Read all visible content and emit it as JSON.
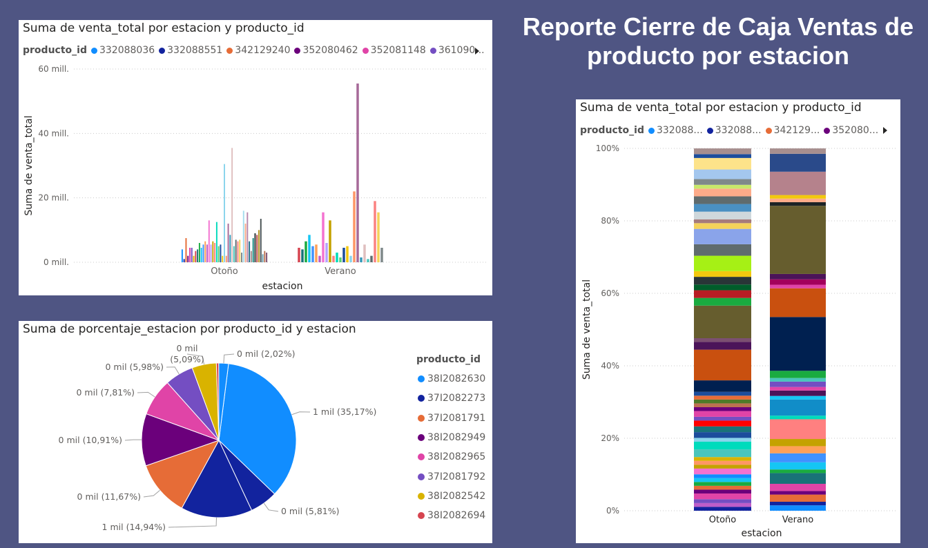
{
  "report_title": "Reporte Cierre de Caja Ventas de producto por estacion",
  "colors": {
    "background": "#4f5583",
    "palette": [
      "#118dff",
      "#12239e",
      "#e66c37",
      "#6b007b",
      "#e044a7",
      "#744ec2",
      "#d9b300",
      "#d64550",
      "#197278",
      "#1aab40",
      "#15c6f4",
      "#4092ff",
      "#ffa058",
      "#be5dc9",
      "#f472d0",
      "#b5a1ff",
      "#c4a200",
      "#ff8080",
      "#00dbbc",
      "#5bd078",
      "#1c4d9c",
      "#f2c80f",
      "#8ad4eb",
      "#fe9666",
      "#a66999",
      "#3599b8",
      "#dfbfbf",
      "#4ac5bb",
      "#5f6b6d",
      "#fb8281",
      "#f4d25a",
      "#7f898a",
      "#a4ddee",
      "#fdab89",
      "#b687ac",
      "#28738a",
      "#a78f8f",
      "#168980",
      "#293537",
      "#bb4a4a",
      "#b59525",
      "#475052",
      "#6a9fb0",
      "#bd7150",
      "#7b4f71",
      "#1b4d5c",
      "#706060",
      "#0f5c55",
      "#1c2325",
      "#7d3231",
      "#7d6b2e"
    ]
  },
  "chart1": {
    "title": "Suma de venta_total por estacion y producto_id",
    "legend_title": "producto_id",
    "legend": [
      {
        "label": "332088036",
        "color": "#118dff"
      },
      {
        "label": "332088551",
        "color": "#12239e"
      },
      {
        "label": "342129240",
        "color": "#e66c37"
      },
      {
        "label": "352080462",
        "color": "#6b007b"
      },
      {
        "label": "352081148",
        "color": "#e044a7"
      },
      {
        "label": "361090...",
        "color": "#744ec2"
      }
    ]
  },
  "chart2": {
    "title": "Suma de porcentaje_estacion por producto_id y estacion",
    "legend_title": "producto_id",
    "legend": [
      {
        "label": "38I2082630",
        "color": "#118dff"
      },
      {
        "label": "37I2082273",
        "color": "#12239e"
      },
      {
        "label": "37I2081791",
        "color": "#e66c37"
      },
      {
        "label": "38I2082949",
        "color": "#6b007b"
      },
      {
        "label": "38I2082965",
        "color": "#e044a7"
      },
      {
        "label": "37I2081792",
        "color": "#744ec2"
      },
      {
        "label": "38I2082542",
        "color": "#d9b300"
      },
      {
        "label": "38I2082694",
        "color": "#d64550"
      }
    ]
  },
  "chart3": {
    "title": "Suma de venta_total por estacion y producto_id",
    "legend_title": "producto_id",
    "legend": [
      {
        "label": "332088...",
        "color": "#118dff"
      },
      {
        "label": "332088...",
        "color": "#12239e"
      },
      {
        "label": "342129...",
        "color": "#e66c37"
      },
      {
        "label": "352080...",
        "color": "#6b007b"
      }
    ]
  },
  "chart_data": [
    {
      "type": "bar",
      "title": "Suma de venta_total por estacion y producto_id",
      "xlabel": "estacion",
      "ylabel": "Suma de venta_total",
      "ylim": [
        0,
        60
      ],
      "yticks": [
        {
          "value": 0,
          "label": "0 mill."
        },
        {
          "value": 20,
          "label": "20 mill."
        },
        {
          "value": 40,
          "label": "40 mill."
        },
        {
          "value": 60,
          "label": "60 mill."
        }
      ],
      "grid": true,
      "categories": [
        "Otoño",
        "Verano"
      ],
      "series_values": [
        [
          4,
          1,
          7.5,
          2,
          4.5,
          4.5,
          2,
          3.5,
          4,
          6,
          4.5,
          5.5,
          6.5,
          5.5,
          13,
          5.5,
          6.5,
          6,
          12.5,
          5,
          5.5,
          2,
          30.5,
          2,
          12,
          8.5,
          35.5,
          5,
          7,
          6.5,
          7,
          3,
          16,
          12,
          15.5,
          6.5,
          3.5,
          7.5,
          9,
          8.5,
          10,
          13.5,
          2.5,
          3.5,
          3
        ],
        [
          4.5,
          4,
          6.5,
          8.5,
          5,
          5.5,
          2,
          15.5,
          6,
          13,
          2,
          3,
          1.5,
          4.5,
          5,
          2,
          22,
          55.5,
          1.5,
          5.5,
          1,
          2,
          19,
          15.5,
          4.5
        ]
      ]
    },
    {
      "type": "pie",
      "title": "Suma de porcentaje_estacion por producto_id y estacion",
      "legend_title": "producto_id",
      "slices": [
        {
          "label": "38I2082630",
          "value": 35.17,
          "display": "1 mil (35,17%)"
        },
        {
          "label": "",
          "value": 5.81,
          "display": "0 mil (5,81%)"
        },
        {
          "label": "37I2082273",
          "value": 14.94,
          "display": "1 mil (14,94%)"
        },
        {
          "label": "37I2081791",
          "value": 11.67,
          "display": "0 mil (11,67%)"
        },
        {
          "label": "38I2082949",
          "value": 10.91,
          "display": "0 mil (10,91%)"
        },
        {
          "label": "38I2082965",
          "value": 7.81,
          "display": "0 mil (7,81%)"
        },
        {
          "label": "37I2081792",
          "value": 5.98,
          "display": "0 mil (5,98%)"
        },
        {
          "label": "38I2082542",
          "value": 5.09,
          "display": "0 mil (5,09%)"
        },
        {
          "label": "38I2082694",
          "value": 0.5,
          "display": ""
        },
        {
          "label": "",
          "value": 2.02,
          "display": "0 mil (2,02%)"
        }
      ]
    },
    {
      "type": "bar",
      "stacked": "100%",
      "title": "Suma de venta_total por estacion y producto_id",
      "xlabel": "estacion",
      "ylabel": "Suma de venta_total",
      "ylim": [
        0,
        100
      ],
      "yticks": [
        {
          "value": 0,
          "label": "0%"
        },
        {
          "value": 20,
          "label": "20%"
        },
        {
          "value": 40,
          "label": "40%"
        },
        {
          "value": 60,
          "label": "60%"
        },
        {
          "value": 80,
          "label": "80%"
        },
        {
          "value": 100,
          "label": "100%"
        }
      ],
      "grid": true,
      "categories": [
        "Otoño",
        "Verano"
      ],
      "stacks": [
        {
          "segments": [
            {
              "v": 1,
              "c": "#12239e"
            },
            {
              "v": 1,
              "c": "#be5dc9"
            },
            {
              "v": 1,
              "c": "#744ec2"
            },
            {
              "v": 1.5,
              "c": "#e044a7"
            },
            {
              "v": 1,
              "c": "#6b007b"
            },
            {
              "v": 1,
              "c": "#e66c37"
            },
            {
              "v": 1,
              "c": "#1aab40"
            },
            {
              "v": 1,
              "c": "#15c6f4"
            },
            {
              "v": 1,
              "c": "#118dff"
            },
            {
              "v": 1.5,
              "c": "#f472d0"
            },
            {
              "v": 1,
              "c": "#c4a200"
            },
            {
              "v": 1,
              "c": "#fe9666"
            },
            {
              "v": 1,
              "c": "#d9b300"
            },
            {
              "v": 2,
              "c": "#4ac5bb"
            },
            {
              "v": 2,
              "c": "#00dbbc"
            },
            {
              "v": 1,
              "c": "#8ad4eb"
            },
            {
              "v": 1.5,
              "c": "#1c4d9c"
            },
            {
              "v": 1.5,
              "c": "#197278"
            },
            {
              "v": 1.5,
              "c": "#ff0000"
            },
            {
              "v": 1,
              "c": "#744ec2"
            },
            {
              "v": 1.5,
              "c": "#e044a7"
            },
            {
              "v": 1,
              "c": "#6b007b"
            },
            {
              "v": 1,
              "c": "#bd7150"
            },
            {
              "v": 1,
              "c": "#4f7a28"
            },
            {
              "v": 1,
              "c": "#e66c37"
            },
            {
              "v": 1,
              "c": "#1c4d9c"
            },
            {
              "v": 3,
              "c": "#002050"
            },
            {
              "v": 8,
              "c": "#c9500f"
            },
            {
              "v": 2,
              "c": "#4b1459"
            },
            {
              "v": 1,
              "c": "#7b4f71"
            },
            {
              "v": 8.5,
              "c": "#665d2e"
            },
            {
              "v": 2,
              "c": "#1aab40"
            },
            {
              "v": 2,
              "c": "#b81d24"
            },
            {
              "v": 1.5,
              "c": "#005d2a"
            },
            {
              "v": 2,
              "c": "#293537"
            },
            {
              "v": 1.5,
              "c": "#f2c80f"
            },
            {
              "v": 4,
              "c": "#a6f015"
            },
            {
              "v": 3,
              "c": "#5f6b6d"
            },
            {
              "v": 4,
              "c": "#8aa4ea"
            },
            {
              "v": 1.5,
              "c": "#f4d25a"
            },
            {
              "v": 1,
              "c": "#a67b7b"
            },
            {
              "v": 2,
              "c": "#cfd8dc"
            },
            {
              "v": 2,
              "c": "#4a90c2"
            },
            {
              "v": 2,
              "c": "#5f6b6d"
            },
            {
              "v": 2,
              "c": "#fdab89"
            },
            {
              "v": 1,
              "c": "#c8e86b"
            },
            {
              "v": 1.5,
              "c": "#7f898a"
            },
            {
              "v": 2.5,
              "c": "#a4c7ee"
            },
            {
              "v": 3,
              "c": "#fde38a"
            },
            {
              "v": 1,
              "c": "#1c4d9c"
            },
            {
              "v": 1.5,
              "c": "#a78f8f"
            }
          ]
        },
        {
          "segments": [
            {
              "v": 1.5,
              "c": "#118dff"
            },
            {
              "v": 1,
              "c": "#12239e"
            },
            {
              "v": 2,
              "c": "#e66c37"
            },
            {
              "v": 1,
              "c": "#6b007b"
            },
            {
              "v": 2,
              "c": "#e044a7"
            },
            {
              "v": 3,
              "c": "#197278"
            },
            {
              "v": 1,
              "c": "#1aab40"
            },
            {
              "v": 2,
              "c": "#15c6f4"
            },
            {
              "v": 2.5,
              "c": "#4092ff"
            },
            {
              "v": 2,
              "c": "#ffa058"
            },
            {
              "v": 2,
              "c": "#c4a200"
            },
            {
              "v": 5.5,
              "c": "#ff8080"
            },
            {
              "v": 1,
              "c": "#00dbbc"
            },
            {
              "v": 4.5,
              "c": "#118dc8"
            },
            {
              "v": 1,
              "c": "#15c6f4"
            },
            {
              "v": 1.5,
              "c": "#4b1459"
            },
            {
              "v": 1,
              "c": "#e044a7"
            },
            {
              "v": 1.5,
              "c": "#744ec2"
            },
            {
              "v": 1,
              "c": "#4ac5bb"
            },
            {
              "v": 2,
              "c": "#1aab40"
            },
            {
              "v": 15,
              "c": "#002050"
            },
            {
              "v": 8,
              "c": "#c9500f"
            },
            {
              "v": 1,
              "c": "#e044a7"
            },
            {
              "v": 1.5,
              "c": "#a3005c"
            },
            {
              "v": 1.5,
              "c": "#4b1459"
            },
            {
              "v": 19,
              "c": "#665d2e"
            },
            {
              "v": 1,
              "c": "#1c2325"
            },
            {
              "v": 1,
              "c": "#fdab89"
            },
            {
              "v": 1,
              "c": "#f2c80f"
            },
            {
              "v": 6.5,
              "c": "#b5828c"
            },
            {
              "v": 5,
              "c": "#2a4a8a"
            },
            {
              "v": 1.5,
              "c": "#a78f8f"
            }
          ]
        }
      ]
    }
  ]
}
